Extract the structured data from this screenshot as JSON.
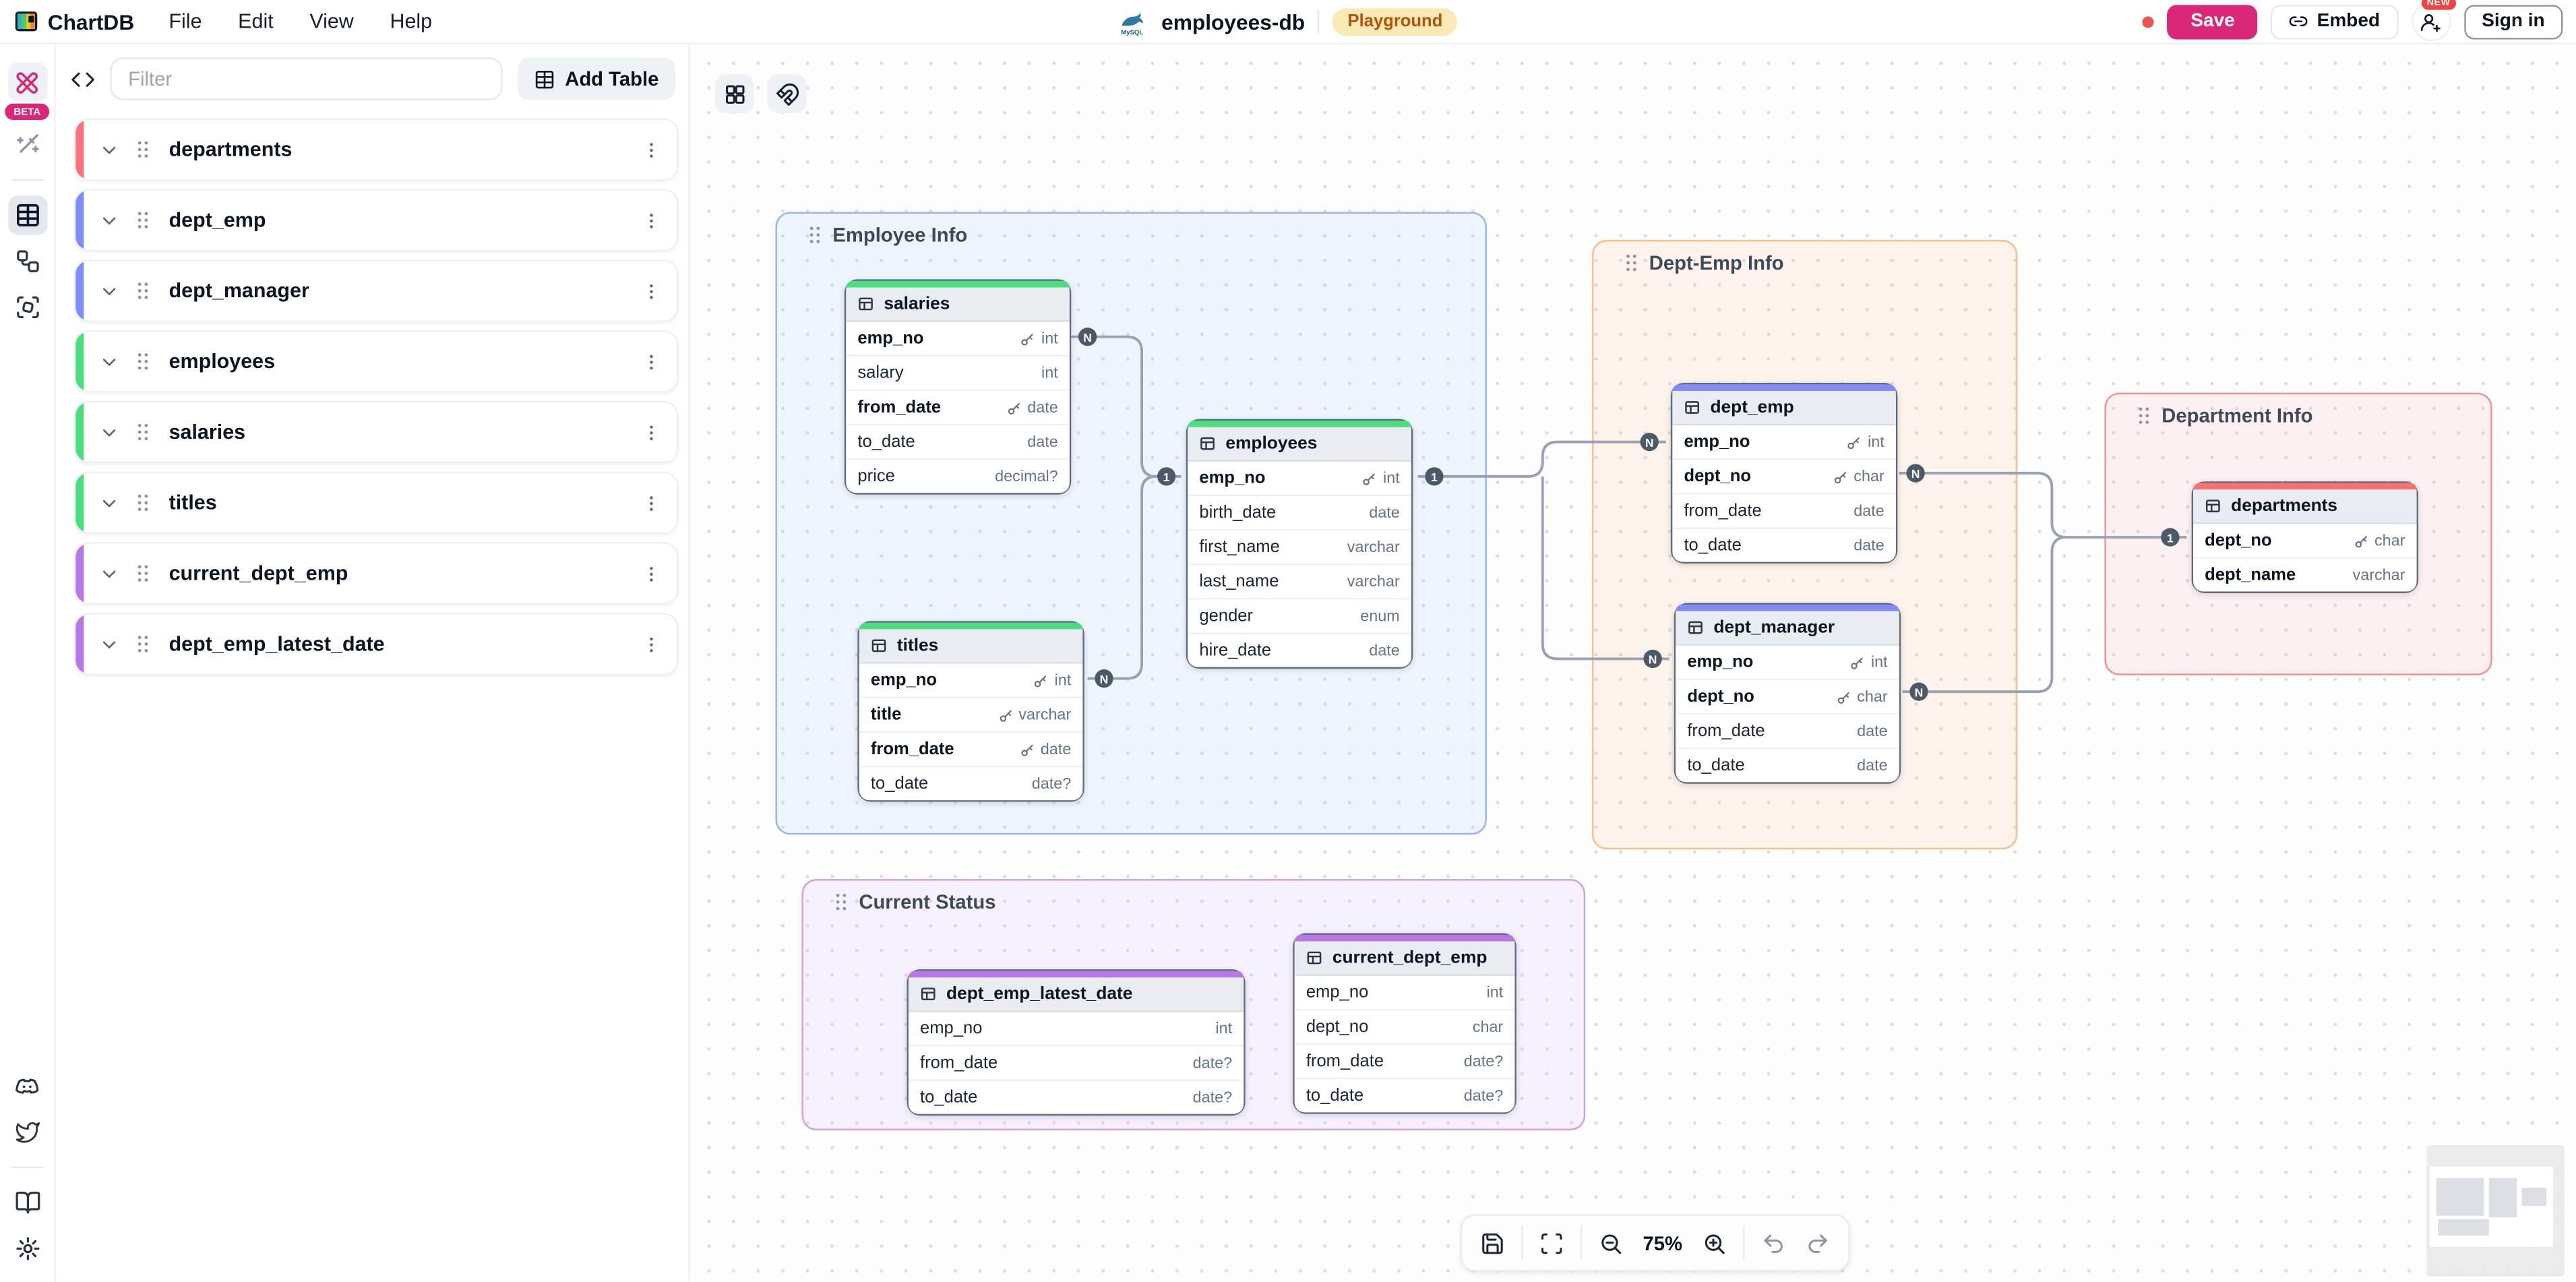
{
  "menubar": {
    "logo_label": "ChartDB",
    "items": [
      "File",
      "Edit",
      "View",
      "Help"
    ]
  },
  "topbar": {
    "db_icon": "mysql-dolphin-icon",
    "diagram_name": "employees-db",
    "environment_badge": "Playground",
    "unsaved_dot_color": "#f05252",
    "save_label": "Save",
    "save_color": "#db2777",
    "embed_label": "Embed",
    "new_badge": "NEW",
    "signin_label": "Sign in"
  },
  "sidebar": {
    "beta_badge": "BETA",
    "beta_color": "#db2777",
    "filter_placeholder": "Filter",
    "add_table_label": "Add Table",
    "tables": [
      {
        "name": "departments",
        "color": "#f9737f"
      },
      {
        "name": "dept_emp",
        "color": "#818cf8"
      },
      {
        "name": "dept_manager",
        "color": "#818cf8"
      },
      {
        "name": "employees",
        "color": "#4ade80"
      },
      {
        "name": "salaries",
        "color": "#4ade80"
      },
      {
        "name": "titles",
        "color": "#4ade80"
      },
      {
        "name": "current_dept_emp",
        "color": "#b678e3"
      },
      {
        "name": "dept_emp_latest_date",
        "color": "#b678e3"
      }
    ]
  },
  "canvas_toolbar": {
    "zoom_level": "75%"
  },
  "diagram": {
    "groups": [
      {
        "label": "Employee Info",
        "border": "#8fb6f7",
        "fill": "rgba(147,197,253,0.13)"
      },
      {
        "label": "Dept-Emp Info",
        "border": "#fbbd8b",
        "fill": "rgba(253,186,116,0.14)"
      },
      {
        "label": "Department Info",
        "border": "#f58f8f",
        "fill": "rgba(252,165,165,0.14)"
      },
      {
        "label": "Current Status",
        "border": "#cf9fe4",
        "fill": "rgba(216,180,254,0.16)"
      }
    ],
    "tables": [
      {
        "name": "salaries",
        "color": "#4ade80",
        "fields": [
          {
            "name": "emp_no",
            "type": "int",
            "key": true,
            "bold": true
          },
          {
            "name": "salary",
            "type": "int",
            "key": false,
            "bold": false
          },
          {
            "name": "from_date",
            "type": "date",
            "key": true,
            "bold": true
          },
          {
            "name": "to_date",
            "type": "date",
            "key": false,
            "bold": false
          },
          {
            "name": "price",
            "type": "decimal?",
            "key": false,
            "bold": false
          }
        ]
      },
      {
        "name": "titles",
        "color": "#4ade80",
        "fields": [
          {
            "name": "emp_no",
            "type": "int",
            "key": true,
            "bold": true
          },
          {
            "name": "title",
            "type": "varchar",
            "key": true,
            "bold": true
          },
          {
            "name": "from_date",
            "type": "date",
            "key": true,
            "bold": true
          },
          {
            "name": "to_date",
            "type": "date?",
            "key": false,
            "bold": false
          }
        ]
      },
      {
        "name": "employees",
        "color": "#4ade80",
        "fields": [
          {
            "name": "emp_no",
            "type": "int",
            "key": true,
            "bold": true
          },
          {
            "name": "birth_date",
            "type": "date",
            "key": false,
            "bold": false
          },
          {
            "name": "first_name",
            "type": "varchar",
            "key": false,
            "bold": false
          },
          {
            "name": "last_name",
            "type": "varchar",
            "key": false,
            "bold": false
          },
          {
            "name": "gender",
            "type": "enum",
            "key": false,
            "bold": false
          },
          {
            "name": "hire_date",
            "type": "date",
            "key": false,
            "bold": false
          }
        ]
      },
      {
        "name": "dept_emp",
        "color": "#818cf8",
        "fields": [
          {
            "name": "emp_no",
            "type": "int",
            "key": true,
            "bold": true
          },
          {
            "name": "dept_no",
            "type": "char",
            "key": true,
            "bold": true
          },
          {
            "name": "from_date",
            "type": "date",
            "key": false,
            "bold": false
          },
          {
            "name": "to_date",
            "type": "date",
            "key": false,
            "bold": false
          }
        ]
      },
      {
        "name": "dept_manager",
        "color": "#818cf8",
        "fields": [
          {
            "name": "emp_no",
            "type": "int",
            "key": true,
            "bold": true
          },
          {
            "name": "dept_no",
            "type": "char",
            "key": true,
            "bold": true
          },
          {
            "name": "from_date",
            "type": "date",
            "key": false,
            "bold": false
          },
          {
            "name": "to_date",
            "type": "date",
            "key": false,
            "bold": false
          }
        ]
      },
      {
        "name": "departments",
        "color": "#f87171",
        "fields": [
          {
            "name": "dept_no",
            "type": "char",
            "key": true,
            "bold": true
          },
          {
            "name": "dept_name",
            "type": "varchar",
            "key": false,
            "bold": true
          }
        ]
      },
      {
        "name": "dept_emp_latest_date",
        "color": "#b678e3",
        "fields": [
          {
            "name": "emp_no",
            "type": "int",
            "key": false,
            "bold": false
          },
          {
            "name": "from_date",
            "type": "date?",
            "key": false,
            "bold": false
          },
          {
            "name": "to_date",
            "type": "date?",
            "key": false,
            "bold": false
          }
        ]
      },
      {
        "name": "current_dept_emp",
        "color": "#b678e3",
        "fields": [
          {
            "name": "emp_no",
            "type": "int",
            "key": false,
            "bold": false
          },
          {
            "name": "dept_no",
            "type": "char",
            "key": false,
            "bold": false
          },
          {
            "name": "from_date",
            "type": "date?",
            "key": false,
            "bold": false
          },
          {
            "name": "to_date",
            "type": "date?",
            "key": false,
            "bold": false
          }
        ]
      }
    ],
    "relationships": [
      {
        "from": "salaries.emp_no",
        "from_card": "N",
        "to": "employees.emp_no",
        "to_card": "1"
      },
      {
        "from": "titles.emp_no",
        "from_card": "N",
        "to": "employees.emp_no",
        "to_card": "1"
      },
      {
        "from": "dept_emp.emp_no",
        "from_card": "N",
        "to": "employees.emp_no",
        "to_card": "1"
      },
      {
        "from": "dept_manager.emp_no",
        "from_card": "N",
        "to": "employees.emp_no",
        "to_card": "1"
      },
      {
        "from": "dept_emp.dept_no",
        "from_card": "N",
        "to": "departments.dept_no",
        "to_card": "1"
      },
      {
        "from": "dept_manager.dept_no",
        "from_card": "N",
        "to": "departments.dept_no",
        "to_card": "1"
      }
    ]
  }
}
